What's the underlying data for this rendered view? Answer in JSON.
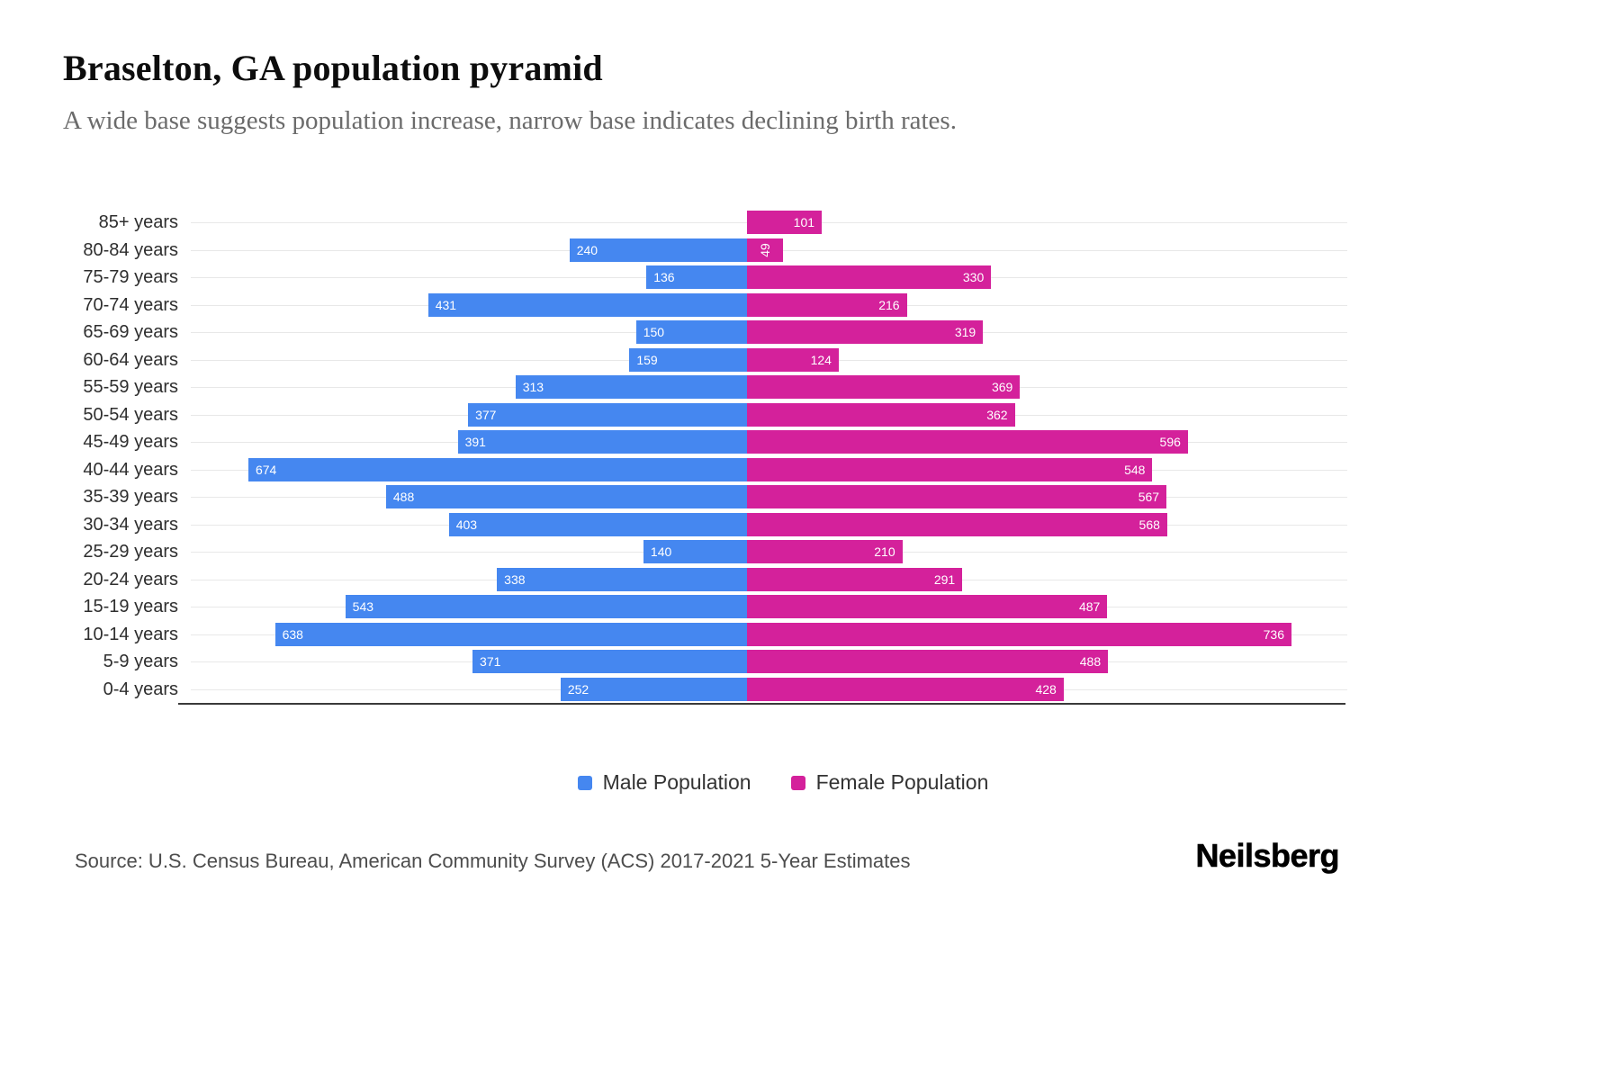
{
  "header": {
    "title": "Braselton, GA population pyramid",
    "subtitle": "A wide base suggests population increase, narrow base indicates declining birth rates."
  },
  "legend": {
    "male_label": "Male Population",
    "female_label": "Female Population"
  },
  "footer": {
    "source": "Source: U.S. Census Bureau, American Community Survey (ACS) 2017-2021 5-Year Estimates",
    "logo": "Neilsberg"
  },
  "colors": {
    "male": "#4587F0",
    "female": "#D4219B",
    "gridline": "#e8e8e8",
    "axis": "#3a3a3a"
  },
  "chart_data": {
    "type": "bar",
    "variant": "population-pyramid",
    "orientation": "horizontal",
    "title": "Braselton, GA population pyramid",
    "categories": [
      "85+ years",
      "80-84 years",
      "75-79 years",
      "70-74 years",
      "65-69 years",
      "60-64 years",
      "55-59 years",
      "50-54 years",
      "45-49 years",
      "40-44 years",
      "35-39 years",
      "30-34 years",
      "25-29 years",
      "20-24 years",
      "15-19 years",
      "10-14 years",
      "5-9 years",
      "0-4 years"
    ],
    "series": [
      {
        "name": "Male Population",
        "side": "left",
        "color": "#4587F0",
        "values": [
          0,
          240,
          136,
          431,
          150,
          159,
          313,
          377,
          391,
          674,
          488,
          403,
          140,
          338,
          543,
          638,
          371,
          252
        ]
      },
      {
        "name": "Female Population",
        "side": "right",
        "color": "#D4219B",
        "values": [
          101,
          49,
          330,
          216,
          319,
          124,
          369,
          362,
          596,
          548,
          567,
          568,
          210,
          291,
          487,
          736,
          488,
          428
        ]
      }
    ],
    "value_labels": "inside-end, white",
    "xlim_left": 750,
    "xlim_right": 815,
    "grid": true,
    "legend_position": "bottom"
  }
}
